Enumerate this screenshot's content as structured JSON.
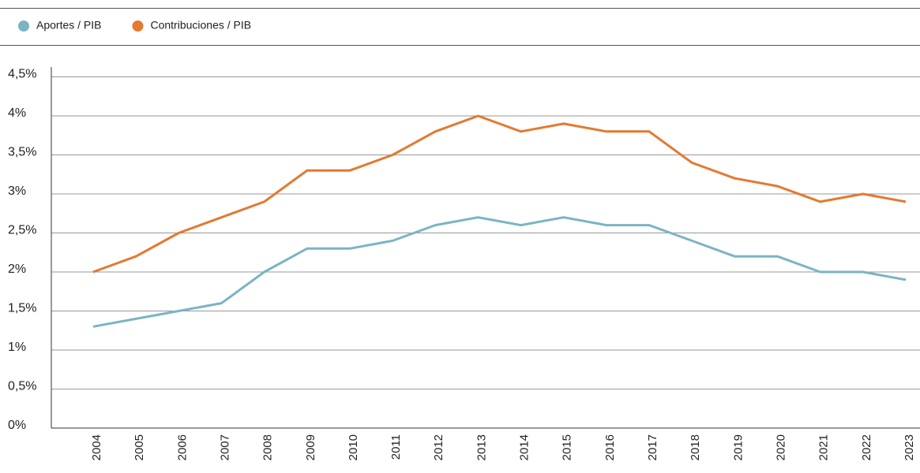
{
  "chart_data": {
    "type": "line",
    "categories": [
      "2004",
      "2005",
      "2006",
      "2007",
      "2008",
      "2009",
      "2010",
      "2011",
      "2012",
      "2013",
      "2014",
      "2015",
      "2016",
      "2017",
      "2018",
      "2019",
      "2020",
      "2021",
      "2022",
      "2023"
    ],
    "series": [
      {
        "name": "Aportes / PIB",
        "color": "#7bb4c4",
        "values": [
          1.3,
          1.4,
          1.5,
          1.6,
          2.0,
          2.3,
          2.3,
          2.4,
          2.6,
          2.7,
          2.6,
          2.7,
          2.6,
          2.6,
          2.4,
          2.2,
          2.2,
          2.0,
          2.0,
          1.9
        ]
      },
      {
        "name": "Contribuciones / PIB",
        "color": "#e4792f",
        "values": [
          2.0,
          2.2,
          2.5,
          2.7,
          2.9,
          3.3,
          3.3,
          3.5,
          3.8,
          4.0,
          3.8,
          3.9,
          3.8,
          3.8,
          3.4,
          3.2,
          3.1,
          2.9,
          3.0,
          2.9
        ]
      }
    ],
    "ylim": [
      0,
      4.5
    ],
    "yticks": [
      {
        "value": 0,
        "label": "0%"
      },
      {
        "value": 0.5,
        "label": "0,5%"
      },
      {
        "value": 1,
        "label": "1%"
      },
      {
        "value": 1.5,
        "label": "1,5%"
      },
      {
        "value": 2,
        "label": "2%"
      },
      {
        "value": 2.5,
        "label": "2,5%"
      },
      {
        "value": 3,
        "label": "3%"
      },
      {
        "value": 3.5,
        "label": "3,5%"
      },
      {
        "value": 4,
        "label": "4%"
      },
      {
        "value": 4.5,
        "label": "4,5%"
      }
    ],
    "grid": true
  }
}
